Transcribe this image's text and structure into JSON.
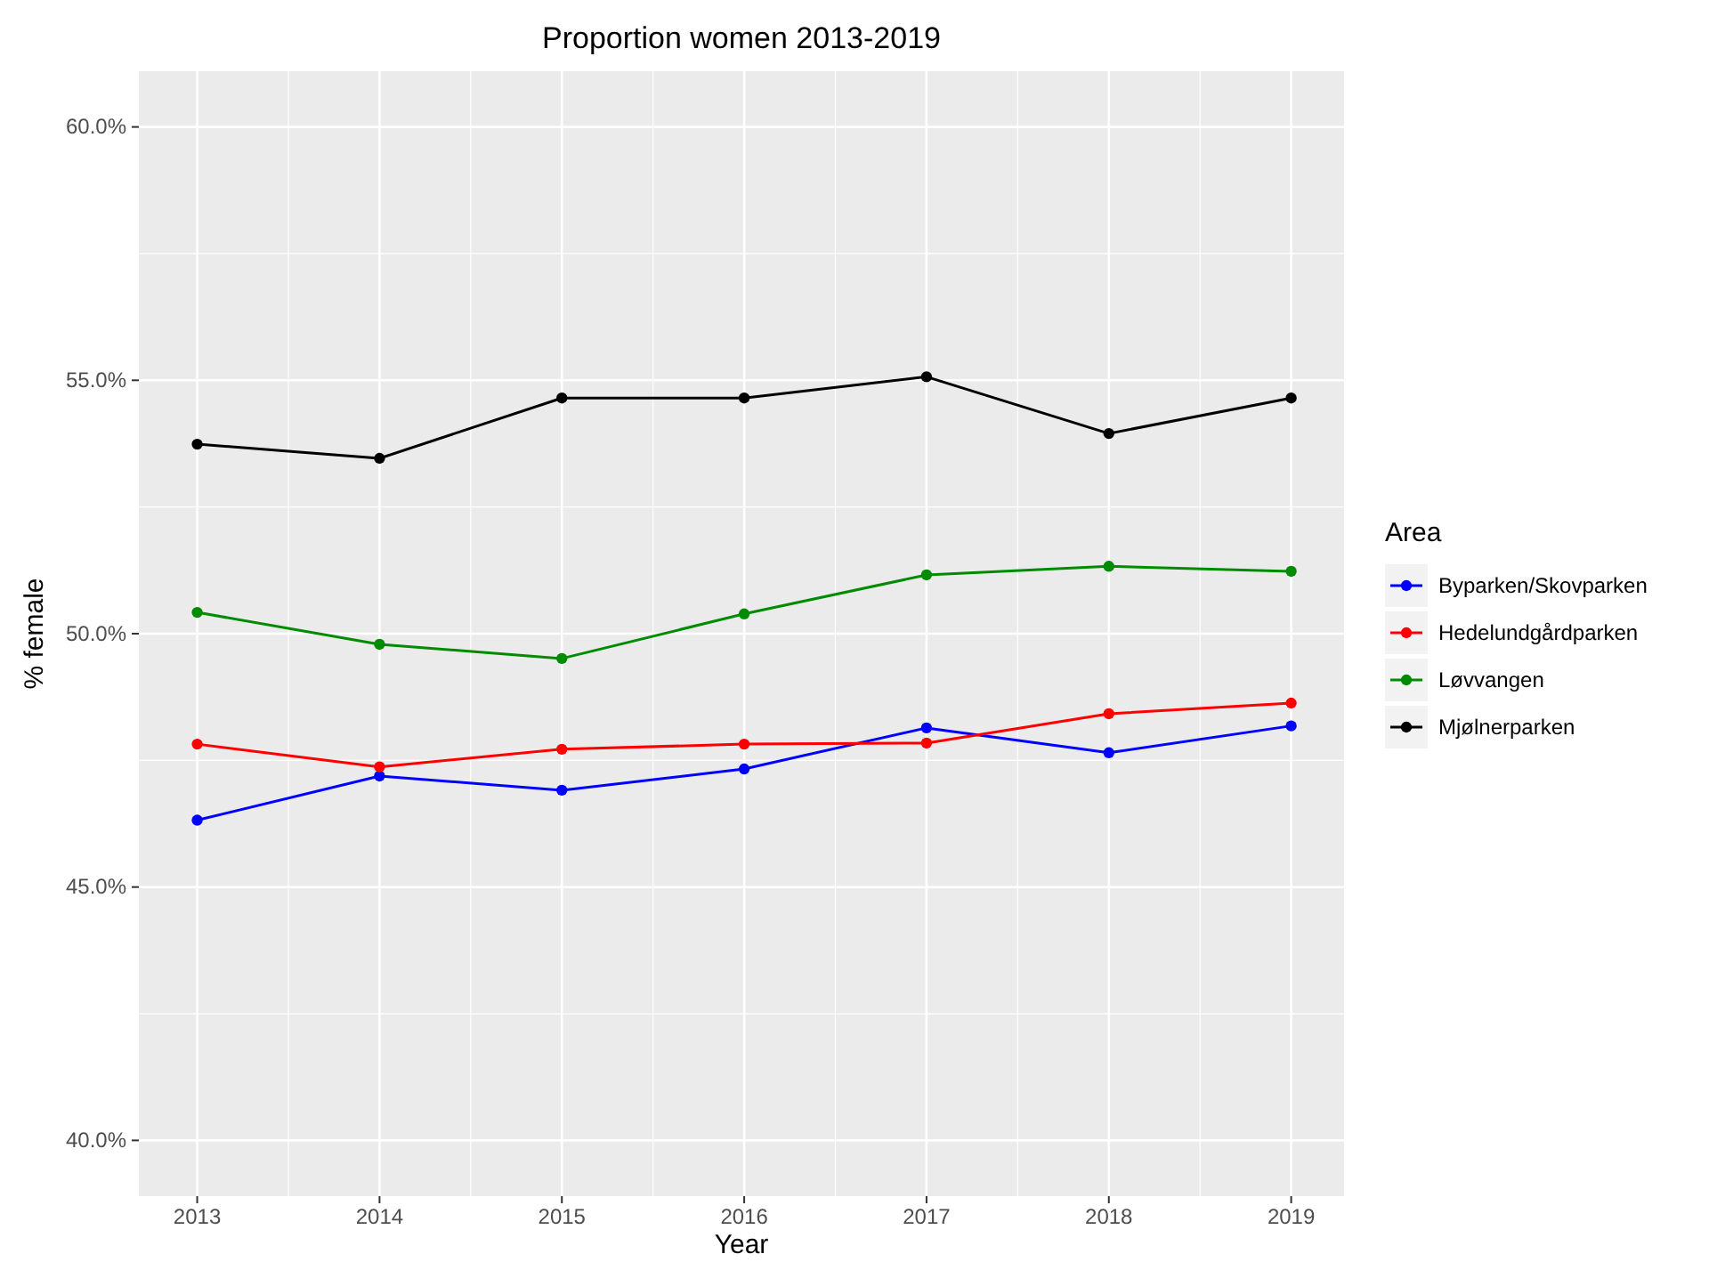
{
  "chart_data": {
    "type": "line",
    "title": "Proportion women 2013-2019",
    "xlabel": "Year",
    "ylabel": "% female",
    "legend_title": "Area",
    "legend": "right",
    "grid": true,
    "marker": "circle",
    "line_style": "solid",
    "x": [
      2013,
      2014,
      2015,
      2016,
      2017,
      2018,
      2019
    ],
    "xlim": [
      2012.68,
      2019.29
    ],
    "xticks": [
      2013,
      2014,
      2015,
      2016,
      2017,
      2018,
      2019
    ],
    "ylim": [
      38.9,
      61.1
    ],
    "yticks": [
      {
        "value": 40,
        "label": "40.0%"
      },
      {
        "value": 45,
        "label": "45.0%"
      },
      {
        "value": 50,
        "label": "50.0%"
      },
      {
        "value": 55,
        "label": "55.0%"
      },
      {
        "value": 60,
        "label": "60.0%"
      }
    ],
    "series": [
      {
        "name": "Byparken/Skovparken",
        "color": "#0000ff",
        "values": [
          46.32,
          47.19,
          46.91,
          47.33,
          48.14,
          47.65,
          48.18
        ]
      },
      {
        "name": "Hedelundgårdparken",
        "color": "#ff0000",
        "values": [
          47.82,
          47.37,
          47.72,
          47.82,
          47.84,
          48.42,
          48.63
        ]
      },
      {
        "name": "Løvvangen",
        "color": "#008b00",
        "values": [
          50.42,
          49.79,
          49.51,
          50.39,
          51.16,
          51.33,
          51.23
        ]
      },
      {
        "name": "Mjølnerparken",
        "color": "#000000",
        "values": [
          53.74,
          53.46,
          54.65,
          54.65,
          55.07,
          53.95,
          54.65
        ]
      }
    ]
  }
}
